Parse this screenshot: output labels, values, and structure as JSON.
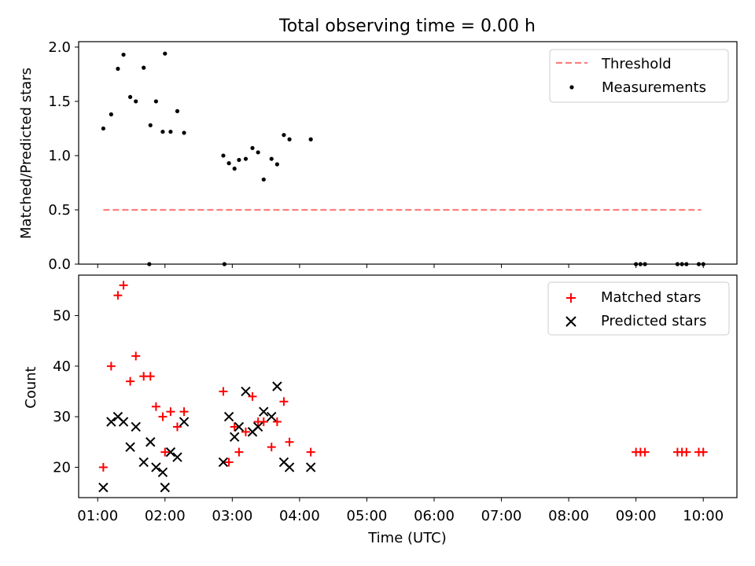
{
  "chart_data": [
    {
      "type": "scatter",
      "title": "Total observing time = 0.00 h",
      "ylabel": "Matched/Predicted stars",
      "xlabel": "",
      "xlim": [
        "00:43",
        "10:30"
      ],
      "ylim": [
        0,
        2.05
      ],
      "yticks": [
        "0.0",
        "0.5",
        "1.0",
        "1.5",
        "2.0"
      ],
      "legend_position": "top-right",
      "grid": false,
      "series": [
        {
          "name": "Threshold",
          "kind": "line",
          "color": "#ff7f7f",
          "x": [
            "01:05",
            "09:58"
          ],
          "y": [
            0.5,
            0.5
          ]
        },
        {
          "name": "Measurements",
          "kind": "scatter",
          "color": "#000000",
          "x": [
            "01:05",
            "01:12",
            "01:18",
            "01:23",
            "01:29",
            "01:34",
            "01:41",
            "01:47",
            "01:52",
            "01:58",
            "02:00",
            "02:05",
            "02:11",
            "02:17",
            "02:52",
            "02:57",
            "03:02",
            "03:06",
            "03:12",
            "03:18",
            "03:23",
            "03:28",
            "03:35",
            "03:40",
            "03:46",
            "03:51",
            "04:10",
            "01:46",
            "02:53",
            "09:00",
            "09:04",
            "09:08",
            "09:37",
            "09:41",
            "09:45",
            "09:56",
            "10:00"
          ],
          "y": [
            1.25,
            1.38,
            1.8,
            1.93,
            1.54,
            1.5,
            1.81,
            1.28,
            1.5,
            1.22,
            1.94,
            1.22,
            1.41,
            1.21,
            1.0,
            0.93,
            0.88,
            0.96,
            0.97,
            1.07,
            1.03,
            0.78,
            0.97,
            0.92,
            1.19,
            1.15,
            1.15,
            0.0,
            0.0,
            0.0,
            0.0,
            0.0,
            0.0,
            0.0,
            0.0,
            0.0,
            0.0
          ]
        }
      ]
    },
    {
      "type": "scatter",
      "title": "",
      "ylabel": "Count",
      "xlabel": "Time (UTC)",
      "xlim": [
        "00:43",
        "10:30"
      ],
      "ylim": [
        14,
        58
      ],
      "yticks": [
        "20",
        "30",
        "40",
        "50"
      ],
      "xticks": [
        "01:00",
        "02:00",
        "03:00",
        "04:00",
        "05:00",
        "06:00",
        "07:00",
        "08:00",
        "09:00",
        "10:00"
      ],
      "legend_position": "top-right",
      "grid": false,
      "series": [
        {
          "name": "Matched stars",
          "marker": "plus",
          "color": "#ff0000",
          "x": [
            "01:05",
            "01:12",
            "01:18",
            "01:23",
            "01:29",
            "01:34",
            "01:41",
            "01:47",
            "01:52",
            "01:58",
            "02:00",
            "02:05",
            "02:11",
            "02:17",
            "02:52",
            "02:57",
            "03:02",
            "03:06",
            "03:12",
            "03:18",
            "03:23",
            "03:28",
            "03:35",
            "03:40",
            "03:46",
            "03:51",
            "04:10",
            "09:00",
            "09:04",
            "09:08",
            "09:37",
            "09:41",
            "09:45",
            "09:56",
            "10:00"
          ],
          "y": [
            20,
            40,
            54,
            56,
            37,
            42,
            38,
            38,
            32,
            30,
            23,
            31,
            28,
            31,
            35,
            21,
            28,
            23,
            27,
            34,
            29,
            29,
            24,
            29,
            33,
            25,
            23,
            23,
            23,
            23,
            23,
            23,
            23,
            23,
            23
          ]
        },
        {
          "name": "Predicted stars",
          "marker": "x",
          "color": "#000000",
          "x": [
            "01:05",
            "01:12",
            "01:18",
            "01:23",
            "01:29",
            "01:34",
            "01:41",
            "01:47",
            "01:52",
            "01:58",
            "02:00",
            "02:05",
            "02:11",
            "02:17",
            "02:52",
            "02:57",
            "03:02",
            "03:06",
            "03:12",
            "03:18",
            "03:23",
            "03:28",
            "03:35",
            "03:40",
            "03:46",
            "03:51",
            "04:10"
          ],
          "y": [
            16,
            29,
            30,
            29,
            24,
            28,
            21,
            25,
            20,
            19,
            16,
            23,
            22,
            29,
            21,
            30,
            26,
            28,
            35,
            27,
            28,
            31,
            30,
            36,
            21,
            20,
            20
          ]
        }
      ]
    }
  ]
}
